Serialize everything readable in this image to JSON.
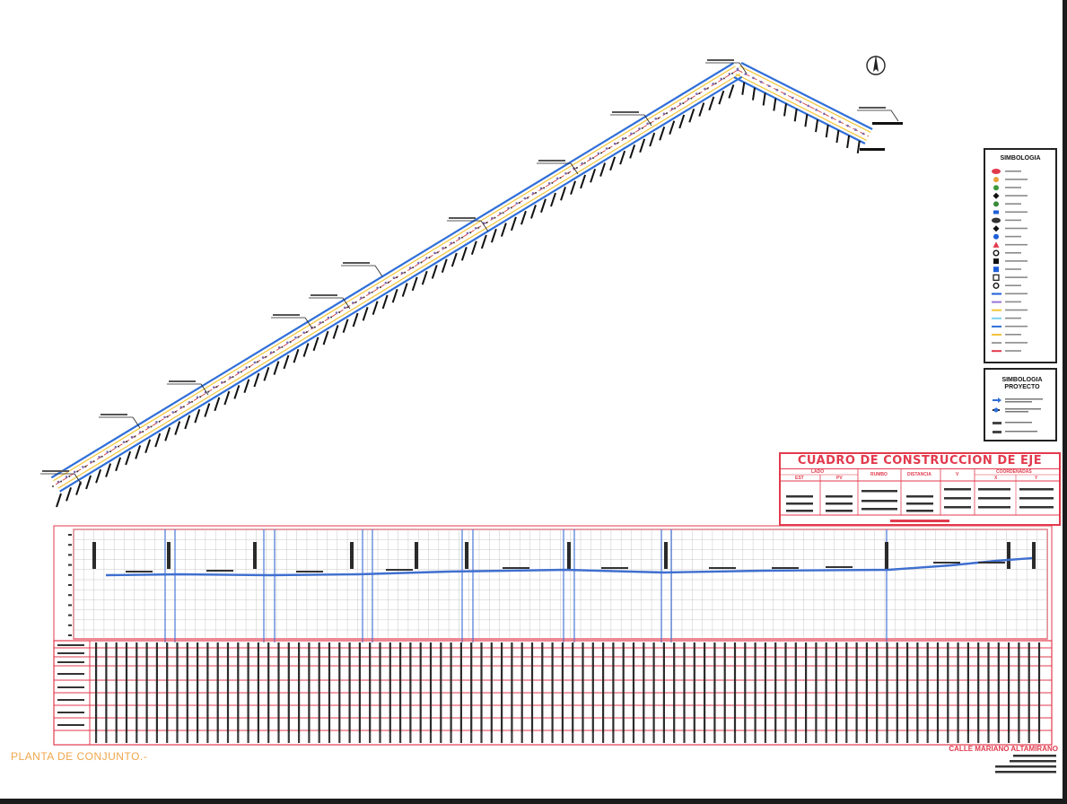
{
  "drawing": {
    "planta_label": "PLANTA DE CONJUNTO.-",
    "street_title": "CALLE MARIANO ALTAMIRANO"
  },
  "legend": {
    "title": "SIMBOLOGIA",
    "project_title": "SIMBOLOGIA PROYECTO"
  },
  "construction_table": {
    "title": "CUADRO DE CONSTRUCCION DE EJE",
    "headers": {
      "lado": "LADO",
      "est": "EST",
      "pv": "PV",
      "rumbo": "RUMBO",
      "distancia": "DISTANCIA",
      "v": "V",
      "coordenadas": "COORDENADAS",
      "x": "X",
      "y": "Y"
    }
  },
  "colors": {
    "profile_line": "#3f6fcf",
    "grid_red": "#e23a4d",
    "station_blue": "#4a78d8",
    "axis_center": "#d23a3a",
    "edge_blue": "#2f6ed8",
    "edge_yellow": "#f2c53a"
  }
}
